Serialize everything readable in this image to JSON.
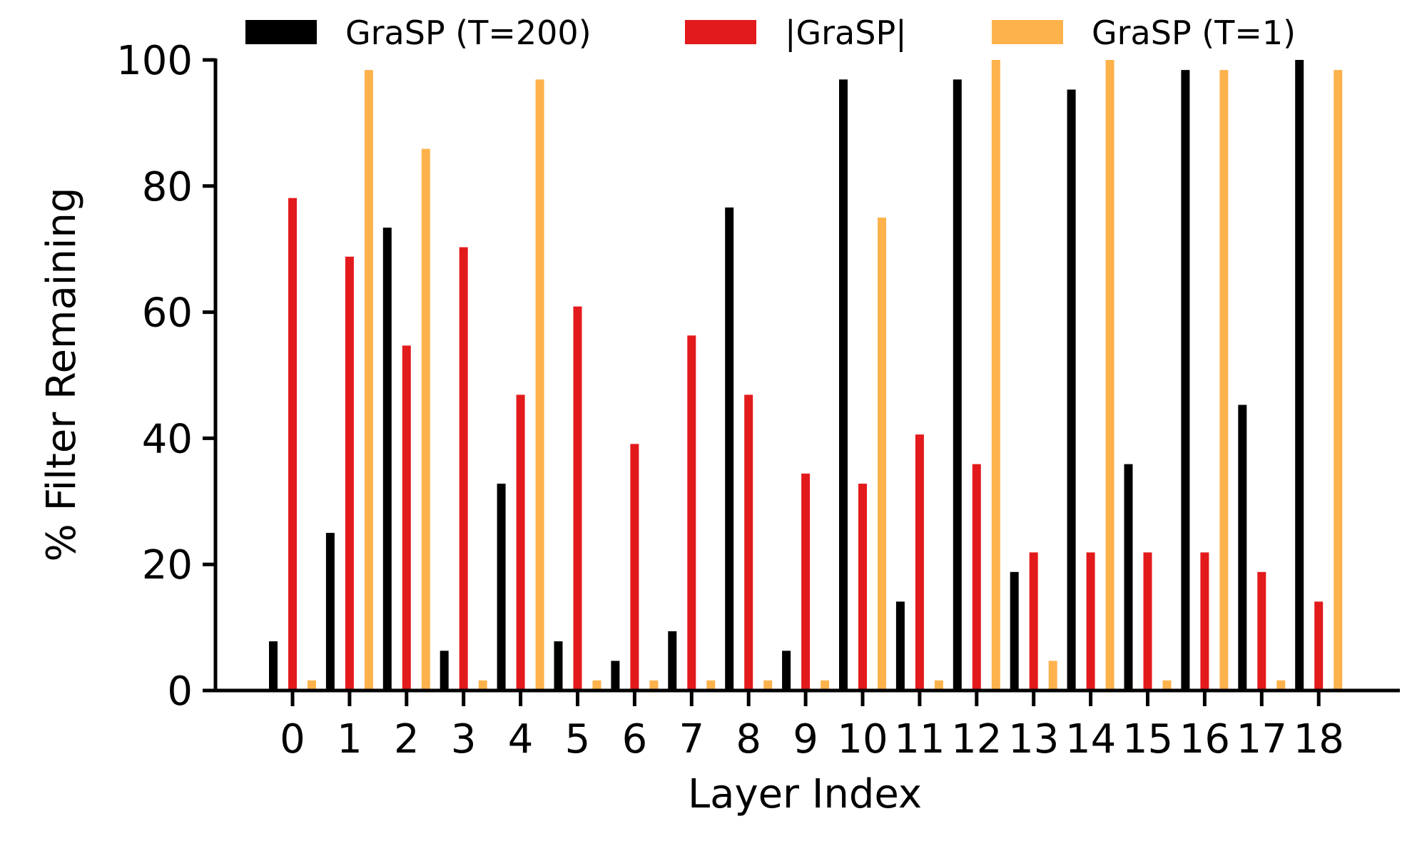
{
  "chart_data": {
    "type": "bar",
    "xlabel": "Layer Index",
    "ylabel": "% Filter Remaining",
    "ylim": [
      0,
      100
    ],
    "yticks": [
      0,
      20,
      40,
      60,
      80,
      100
    ],
    "grid": false,
    "legend_position": "top",
    "categories": [
      "0",
      "1",
      "2",
      "3",
      "4",
      "5",
      "6",
      "7",
      "8",
      "9",
      "10",
      "11",
      "12",
      "13",
      "14",
      "15",
      "16",
      "17",
      "18"
    ],
    "series": [
      {
        "name": "GraSP (T=200)",
        "color": "#000000",
        "values": [
          7.8,
          25.0,
          73.4,
          6.3,
          32.8,
          7.8,
          4.7,
          9.4,
          76.6,
          6.3,
          96.9,
          14.1,
          96.9,
          18.8,
          95.3,
          35.9,
          98.4,
          45.3,
          100.0
        ]
      },
      {
        "name": "|GraSP|",
        "color": "#e31a1c",
        "values": [
          78.1,
          68.8,
          54.7,
          70.3,
          46.9,
          60.9,
          39.1,
          56.3,
          46.9,
          34.4,
          32.8,
          40.6,
          35.9,
          21.9,
          21.9,
          21.9,
          21.9,
          18.8,
          14.1
        ]
      },
      {
        "name": "GraSP (T=1)",
        "color": "#feb24c",
        "values": [
          1.6,
          98.4,
          85.9,
          1.6,
          96.9,
          1.6,
          1.6,
          1.6,
          1.6,
          1.6,
          75.0,
          1.6,
          100.0,
          4.7,
          100.0,
          1.6,
          98.4,
          1.6,
          98.4
        ]
      }
    ]
  }
}
